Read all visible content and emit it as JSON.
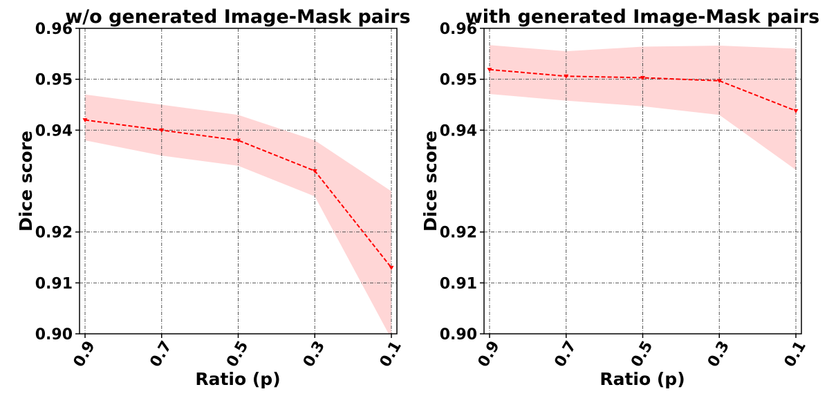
{
  "chart_data": [
    {
      "type": "line",
      "title": "w/o generated Image-Mask pairs",
      "xlabel": "Ratio (p)",
      "ylabel": "Dice score",
      "categories": [
        "0.9",
        "0.7",
        "0.5",
        "0.3",
        "0.1"
      ],
      "yticks": [
        0.9,
        0.91,
        0.92,
        0.94,
        0.95,
        0.96
      ],
      "ytick_labels": [
        "0.90",
        "0.91",
        "0.92",
        "0.94",
        "0.95",
        "0.96"
      ],
      "ylim": [
        0.9,
        0.96
      ],
      "grid": true,
      "series": [
        {
          "values": [
            0.942,
            0.94,
            0.938,
            0.932,
            0.913
          ],
          "lower": [
            0.938,
            0.935,
            0.933,
            0.927,
            0.899
          ],
          "upper": [
            0.947,
            0.945,
            0.943,
            0.938,
            0.928
          ],
          "line_color": "#ff0000",
          "band_color": "#ffd6d6",
          "line_style": "dashed",
          "marker": "triangle-down"
        }
      ]
    },
    {
      "type": "line",
      "title": "with generated Image-Mask pairs",
      "xlabel": "Ratio (p)",
      "ylabel": "Dice score",
      "categories": [
        "0.9",
        "0.7",
        "0.5",
        "0.3",
        "0.1"
      ],
      "yticks": [
        0.9,
        0.91,
        0.92,
        0.94,
        0.95,
        0.96
      ],
      "ytick_labels": [
        "0.90",
        "0.91",
        "0.92",
        "0.94",
        "0.95",
        "0.96"
      ],
      "ylim": [
        0.9,
        0.96
      ],
      "grid": true,
      "series": [
        {
          "values": [
            0.9519,
            0.9506,
            0.9503,
            0.9497,
            0.9438
          ],
          "lower": [
            0.9471,
            0.9458,
            0.9447,
            0.943,
            0.9322
          ],
          "upper": [
            0.9567,
            0.9555,
            0.9564,
            0.9566,
            0.956
          ],
          "line_color": "#ff0000",
          "band_color": "#ffd6d6",
          "line_style": "dashed",
          "marker": "triangle-down"
        }
      ]
    }
  ]
}
